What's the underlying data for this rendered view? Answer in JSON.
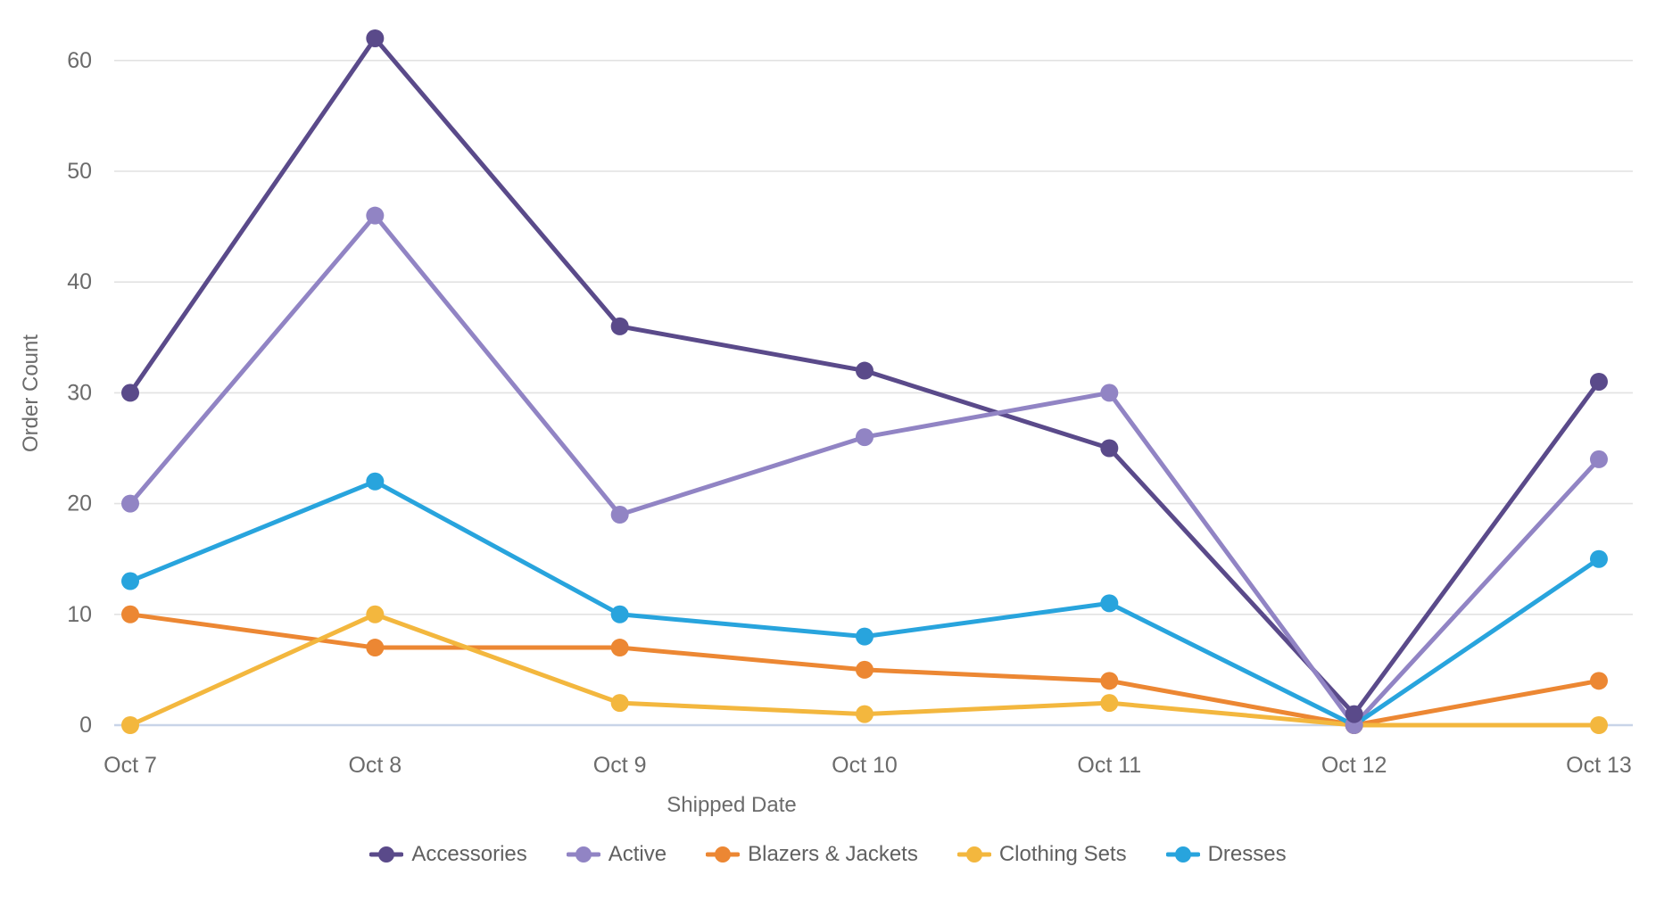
{
  "chart_data": {
    "type": "line",
    "title": "",
    "xlabel": "Shipped Date",
    "ylabel": "Order Count",
    "categories": [
      "Oct 7",
      "Oct 8",
      "Oct 9",
      "Oct 10",
      "Oct 11",
      "Oct 12",
      "Oct 13"
    ],
    "series": [
      {
        "name": "Accessories",
        "color": "#5A4A8A",
        "values": [
          30,
          62,
          36,
          32,
          25,
          1,
          31
        ]
      },
      {
        "name": "Active",
        "color": "#9184C4",
        "values": [
          20,
          46,
          19,
          26,
          30,
          0,
          24
        ]
      },
      {
        "name": "Blazers & Jackets",
        "color": "#EC8733",
        "values": [
          10,
          7,
          7,
          5,
          4,
          0,
          4
        ]
      },
      {
        "name": "Clothing Sets",
        "color": "#F3B73E",
        "values": [
          0,
          10,
          2,
          1,
          2,
          0,
          0
        ]
      },
      {
        "name": "Dresses",
        "color": "#28A4DD",
        "values": [
          13,
          22,
          10,
          8,
          11,
          0,
          15
        ]
      }
    ],
    "ylim": [
      0,
      60
    ],
    "yticks": [
      0,
      10,
      20,
      30,
      40,
      50,
      60
    ],
    "grid": true,
    "legend_position": "bottom",
    "axis_colors": {
      "grid": "#E2E2E2",
      "zero_line": "#C8D4E8",
      "tick_text": "#6B6B6B",
      "legend_text": "#606060"
    }
  }
}
